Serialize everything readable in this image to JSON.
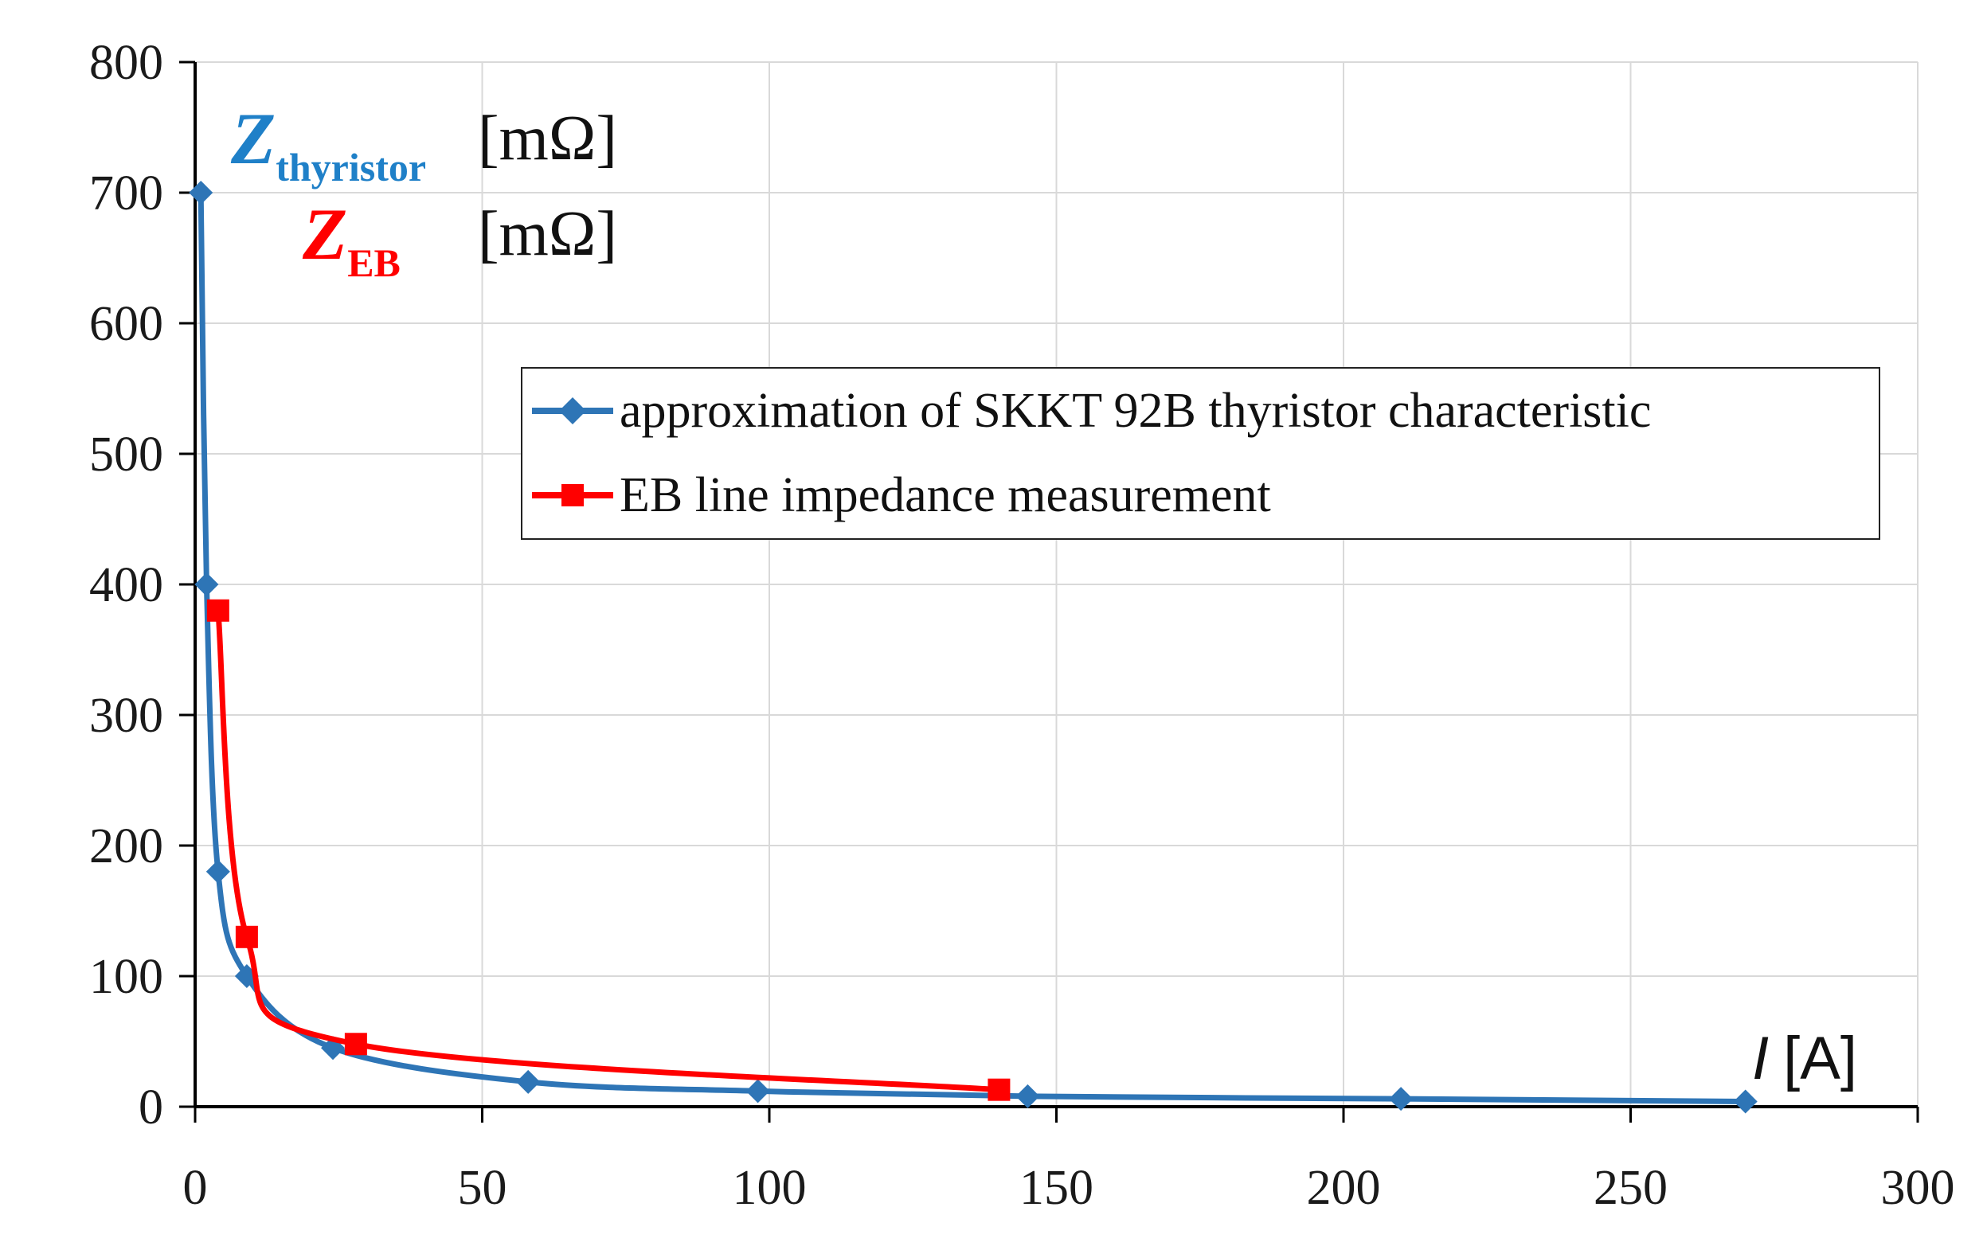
{
  "chart_data": {
    "type": "line",
    "title": "",
    "xlabel": "I [A]",
    "xlabel_symbol": "I",
    "xlabel_unit": "[A]",
    "xlim": [
      0,
      300
    ],
    "ylim": [
      0,
      800
    ],
    "xticks": [
      0,
      50,
      100,
      150,
      200,
      250,
      300
    ],
    "yticks": [
      0,
      100,
      200,
      300,
      400,
      500,
      600,
      700,
      800
    ],
    "grid": true,
    "y_label_blue": {
      "symbol": "Z",
      "subscript": "thyristor",
      "unit": "[mΩ]"
    },
    "y_label_red": {
      "symbol": "Z",
      "subscript": "EB",
      "unit": "[mΩ]"
    },
    "legend_position": "upper-right",
    "series": [
      {
        "name": "approximation of SKKT 92B thyristor characteristic",
        "color": "#2E75B6",
        "marker": "diamond",
        "x": [
          1,
          2,
          4,
          9,
          24,
          58,
          98,
          145,
          210,
          270
        ],
        "y": [
          700,
          400,
          180,
          100,
          45,
          19,
          12,
          8,
          6,
          4
        ]
      },
      {
        "name": "EB line impedance measurement",
        "color": "#FF0000",
        "marker": "square",
        "x": [
          4,
          9,
          28,
          140
        ],
        "y": [
          380,
          130,
          48,
          13
        ]
      }
    ]
  }
}
